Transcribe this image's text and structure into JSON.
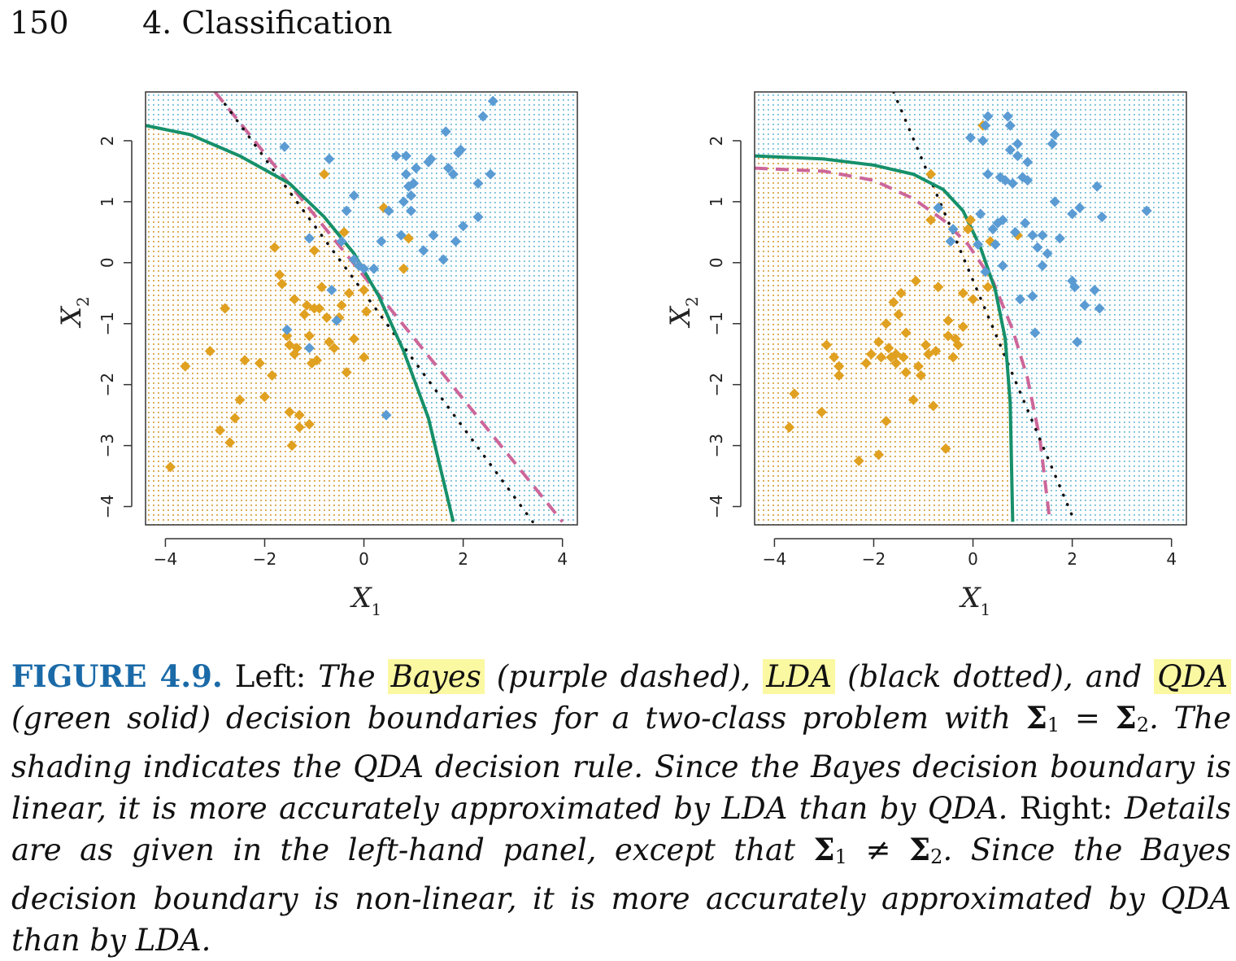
{
  "header": {
    "page_number": "150",
    "chapter": "4.  Classification"
  },
  "colors": {
    "orange_class": "#e0a020",
    "blue_class": "#5b9bd3",
    "bayes": "#cc6699",
    "lda": "#111111",
    "qda": "#16906a",
    "orange_shade": "#e8a53a",
    "blue_shade": "#6bbad8"
  },
  "chart_data": [
    {
      "type": "scatter",
      "panel": "left",
      "xlabel": "X",
      "xlabel_sub": "1",
      "ylabel": "X",
      "ylabel_sub": "2",
      "xlim": [
        -4.4,
        4.3
      ],
      "ylim": [
        -4.3,
        2.8
      ],
      "xticks": [
        "−4",
        "−2",
        "0",
        "2",
        "4"
      ],
      "xtick_values": [
        -4,
        -2,
        0,
        2,
        4
      ],
      "yticks": [
        "−4",
        "−3",
        "−2",
        "−1",
        "0",
        "1",
        "2"
      ],
      "ytick_values": [
        -4,
        -3,
        -2,
        -1,
        0,
        1,
        2
      ],
      "bayes_line": {
        "points": [
          [
            -3.0,
            2.8
          ],
          [
            4.0,
            -4.25
          ]
        ]
      },
      "lda_line": {
        "points": [
          [
            -2.8,
            2.6
          ],
          [
            3.4,
            -4.25
          ]
        ]
      },
      "qda_curve": {
        "points": [
          [
            -4.4,
            2.25
          ],
          [
            -3.5,
            2.1
          ],
          [
            -2.5,
            1.75
          ],
          [
            -1.5,
            1.3
          ],
          [
            -0.8,
            0.75
          ],
          [
            -0.2,
            0.15
          ],
          [
            0.3,
            -0.55
          ],
          [
            0.8,
            -1.45
          ],
          [
            1.3,
            -2.55
          ],
          [
            1.8,
            -4.25
          ]
        ]
      },
      "orange_points": [
        [
          -3.9,
          -3.35
        ],
        [
          -3.6,
          -1.7
        ],
        [
          -3.1,
          -1.45
        ],
        [
          -2.9,
          -2.75
        ],
        [
          -2.8,
          -0.75
        ],
        [
          -2.7,
          -2.95
        ],
        [
          -2.6,
          -2.55
        ],
        [
          -2.5,
          -2.25
        ],
        [
          -2.4,
          -1.6
        ],
        [
          -2.1,
          -1.65
        ],
        [
          -2.0,
          -2.2
        ],
        [
          -1.85,
          -1.85
        ],
        [
          -1.8,
          0.25
        ],
        [
          -1.7,
          -0.2
        ],
        [
          -1.65,
          -0.35
        ],
        [
          -1.55,
          -1.2
        ],
        [
          -1.5,
          -1.35
        ],
        [
          -1.5,
          -2.45
        ],
        [
          -1.45,
          -3.0
        ],
        [
          -1.4,
          -0.6
        ],
        [
          -1.4,
          -1.5
        ],
        [
          -1.35,
          -1.4
        ],
        [
          -1.3,
          -2.7
        ],
        [
          -1.3,
          -2.5
        ],
        [
          -1.2,
          -0.85
        ],
        [
          -1.15,
          -0.7
        ],
        [
          -1.1,
          -1.2
        ],
        [
          -1.1,
          -2.65
        ],
        [
          -1.05,
          -1.65
        ],
        [
          -1.0,
          -0.75
        ],
        [
          -1.0,
          0.2
        ],
        [
          -0.95,
          -1.6
        ],
        [
          -0.9,
          -0.75
        ],
        [
          -0.85,
          -0.4
        ],
        [
          -0.8,
          1.45
        ],
        [
          -0.75,
          -0.9
        ],
        [
          -0.7,
          -1.3
        ],
        [
          -0.6,
          -1.4
        ],
        [
          -0.5,
          -0.9
        ],
        [
          -0.45,
          -0.7
        ],
        [
          -0.4,
          0.5
        ],
        [
          -0.35,
          -1.8
        ],
        [
          -0.3,
          -0.5
        ],
        [
          -0.2,
          -1.25
        ],
        [
          -0.1,
          -0.05
        ],
        [
          0.0,
          -1.55
        ],
        [
          0.0,
          -0.45
        ],
        [
          0.05,
          -0.8
        ],
        [
          0.4,
          0.9
        ],
        [
          0.8,
          -0.1
        ],
        [
          0.9,
          0.4
        ]
      ],
      "blue_points": [
        [
          -1.6,
          1.9
        ],
        [
          -1.55,
          -1.1
        ],
        [
          -1.1,
          0.4
        ],
        [
          -1.1,
          -1.4
        ],
        [
          -0.7,
          1.7
        ],
        [
          -0.65,
          -0.45
        ],
        [
          -0.55,
          -0.95
        ],
        [
          -0.45,
          0.35
        ],
        [
          -0.35,
          0.85
        ],
        [
          -0.2,
          1.1
        ],
        [
          -0.2,
          0.05
        ],
        [
          -0.1,
          -0.05
        ],
        [
          0.0,
          -0.1
        ],
        [
          0.2,
          -0.1
        ],
        [
          0.35,
          0.35
        ],
        [
          0.45,
          -2.5
        ],
        [
          0.5,
          0.85
        ],
        [
          0.65,
          1.75
        ],
        [
          0.75,
          0.45
        ],
        [
          0.8,
          1.0
        ],
        [
          0.85,
          1.75
        ],
        [
          0.85,
          1.45
        ],
        [
          0.9,
          1.25
        ],
        [
          0.95,
          0.85
        ],
        [
          0.95,
          1.1
        ],
        [
          1.0,
          1.3
        ],
        [
          1.05,
          1.55
        ],
        [
          1.2,
          0.2
        ],
        [
          1.3,
          1.65
        ],
        [
          1.35,
          1.7
        ],
        [
          1.4,
          0.45
        ],
        [
          1.6,
          0.05
        ],
        [
          1.65,
          2.15
        ],
        [
          1.7,
          1.55
        ],
        [
          1.8,
          1.45
        ],
        [
          1.85,
          0.35
        ],
        [
          1.9,
          1.8
        ],
        [
          1.95,
          1.85
        ],
        [
          2.0,
          0.6
        ],
        [
          2.3,
          1.3
        ],
        [
          2.3,
          0.75
        ],
        [
          2.4,
          2.4
        ],
        [
          2.55,
          1.45
        ],
        [
          2.6,
          2.65
        ]
      ]
    },
    {
      "type": "scatter",
      "panel": "right",
      "xlabel": "X",
      "xlabel_sub": "1",
      "ylabel": "X",
      "ylabel_sub": "2",
      "xlim": [
        -4.4,
        4.3
      ],
      "ylim": [
        -4.3,
        2.8
      ],
      "xticks": [
        "−4",
        "−2",
        "0",
        "2",
        "4"
      ],
      "xtick_values": [
        -4,
        -2,
        0,
        2,
        4
      ],
      "yticks": [
        "−4",
        "−3",
        "−2",
        "−1",
        "0",
        "1",
        "2"
      ],
      "ytick_values": [
        -4,
        -3,
        -2,
        -1,
        0,
        1,
        2
      ],
      "bayes_curve": {
        "points": [
          [
            -4.4,
            1.55
          ],
          [
            -3.0,
            1.5
          ],
          [
            -2.0,
            1.35
          ],
          [
            -1.2,
            1.05
          ],
          [
            -0.6,
            0.7
          ],
          [
            -0.1,
            0.3
          ],
          [
            0.4,
            -0.3
          ],
          [
            0.8,
            -1.1
          ],
          [
            1.1,
            -1.9
          ],
          [
            1.35,
            -2.9
          ],
          [
            1.55,
            -4.25
          ]
        ]
      },
      "lda_line": {
        "points": [
          [
            -1.6,
            2.8
          ],
          [
            2.05,
            -4.25
          ]
        ]
      },
      "qda_curve": {
        "points": [
          [
            -4.4,
            1.75
          ],
          [
            -3.0,
            1.7
          ],
          [
            -2.0,
            1.6
          ],
          [
            -1.2,
            1.45
          ],
          [
            -0.6,
            1.2
          ],
          [
            -0.2,
            0.85
          ],
          [
            0.15,
            0.25
          ],
          [
            0.45,
            -0.45
          ],
          [
            0.65,
            -1.25
          ],
          [
            0.75,
            -2.3
          ],
          [
            0.8,
            -4.25
          ]
        ]
      },
      "orange_points": [
        [
          -3.7,
          -2.7
        ],
        [
          -3.6,
          -2.15
        ],
        [
          -3.05,
          -2.45
        ],
        [
          -2.95,
          -1.35
        ],
        [
          -2.8,
          -1.55
        ],
        [
          -2.7,
          -1.7
        ],
        [
          -2.7,
          -1.85
        ],
        [
          -2.3,
          -3.25
        ],
        [
          -2.15,
          -1.65
        ],
        [
          -2.05,
          -1.5
        ],
        [
          -1.9,
          -1.3
        ],
        [
          -1.9,
          -3.15
        ],
        [
          -1.85,
          -1.55
        ],
        [
          -1.75,
          -1.0
        ],
        [
          -1.75,
          -2.6
        ],
        [
          -1.7,
          -1.4
        ],
        [
          -1.65,
          -1.55
        ],
        [
          -1.6,
          -0.65
        ],
        [
          -1.55,
          -1.5
        ],
        [
          -1.55,
          -1.65
        ],
        [
          -1.5,
          -0.85
        ],
        [
          -1.45,
          -0.5
        ],
        [
          -1.4,
          -1.55
        ],
        [
          -1.35,
          -1.15
        ],
        [
          -1.35,
          -1.8
        ],
        [
          -1.2,
          -2.25
        ],
        [
          -1.15,
          -0.3
        ],
        [
          -1.1,
          -1.7
        ],
        [
          -1.05,
          -1.85
        ],
        [
          -0.95,
          -1.35
        ],
        [
          -0.9,
          -1.5
        ],
        [
          -0.85,
          0.7
        ],
        [
          -0.85,
          1.45
        ],
        [
          -0.8,
          -2.35
        ],
        [
          -0.75,
          -1.45
        ],
        [
          -0.7,
          -0.4
        ],
        [
          -0.55,
          -3.05
        ],
        [
          -0.5,
          -0.95
        ],
        [
          -0.5,
          -1.2
        ],
        [
          -0.4,
          -1.55
        ],
        [
          -0.35,
          -1.25
        ],
        [
          -0.3,
          -1.35
        ],
        [
          -0.2,
          -1.05
        ],
        [
          -0.2,
          -0.5
        ],
        [
          -0.1,
          0.55
        ],
        [
          -0.05,
          0.7
        ],
        [
          0.0,
          -0.6
        ],
        [
          0.2,
          2.25
        ],
        [
          0.35,
          0.35
        ],
        [
          0.3,
          -0.4
        ],
        [
          0.9,
          0.45
        ]
      ],
      "blue_points": [
        [
          -0.7,
          0.9
        ],
        [
          -0.45,
          0.35
        ],
        [
          -0.4,
          0.55
        ],
        [
          -0.05,
          2.05
        ],
        [
          0.1,
          0.3
        ],
        [
          0.15,
          0.8
        ],
        [
          0.2,
          2.0
        ],
        [
          0.25,
          2.25
        ],
        [
          0.3,
          2.4
        ],
        [
          0.3,
          1.45
        ],
        [
          0.25,
          -0.15
        ],
        [
          0.4,
          0.55
        ],
        [
          0.45,
          0.3
        ],
        [
          0.5,
          0.65
        ],
        [
          0.55,
          1.4
        ],
        [
          0.6,
          0.7
        ],
        [
          0.6,
          -0.05
        ],
        [
          0.65,
          1.35
        ],
        [
          0.7,
          2.4
        ],
        [
          0.75,
          2.25
        ],
        [
          0.75,
          1.85
        ],
        [
          0.8,
          1.3
        ],
        [
          0.85,
          0.5
        ],
        [
          0.9,
          1.95
        ],
        [
          0.9,
          1.75
        ],
        [
          0.95,
          -0.6
        ],
        [
          1.0,
          1.4
        ],
        [
          1.05,
          0.65
        ],
        [
          1.1,
          1.65
        ],
        [
          1.1,
          1.35
        ],
        [
          1.2,
          0.45
        ],
        [
          1.2,
          -0.55
        ],
        [
          1.25,
          -1.15
        ],
        [
          1.3,
          0.25
        ],
        [
          1.4,
          0.45
        ],
        [
          1.4,
          -0.05
        ],
        [
          1.5,
          0.15
        ],
        [
          1.6,
          1.95
        ],
        [
          1.65,
          2.1
        ],
        [
          1.65,
          1.0
        ],
        [
          1.75,
          0.4
        ],
        [
          2.0,
          -0.3
        ],
        [
          2.0,
          0.8
        ],
        [
          2.05,
          -0.4
        ],
        [
          2.1,
          -1.3
        ],
        [
          2.15,
          0.9
        ],
        [
          2.25,
          -0.7
        ],
        [
          2.45,
          -0.45
        ],
        [
          2.5,
          1.25
        ],
        [
          2.55,
          -0.75
        ],
        [
          2.6,
          0.75
        ],
        [
          3.5,
          0.85
        ]
      ]
    }
  ],
  "caption": {
    "label": "FIGURE 4.9.",
    "left_word": "Left:",
    "s1": "The",
    "bayes": "Bayes",
    "s2": "(purple dashed),",
    "lda": "LDA",
    "s3": "(black dotted), and",
    "qda": "QDA",
    "s4": "(green solid) decision boundaries for a two-class problem with",
    "sigma": "Σ",
    "one": "1",
    "two": "2",
    "eq": "=",
    "neq": "≠",
    "s5": ". The shading indicates the QDA decision rule. Since the Bayes decision boundary is linear, it is more accurately approximated by LDA than by QDA.",
    "right_word": "Right:",
    "s6": "Details are as given in the left-hand panel, except that",
    "s7": ". Since the Bayes decision boundary is non-linear, it is more accurately approximated by QDA than by LDA."
  }
}
